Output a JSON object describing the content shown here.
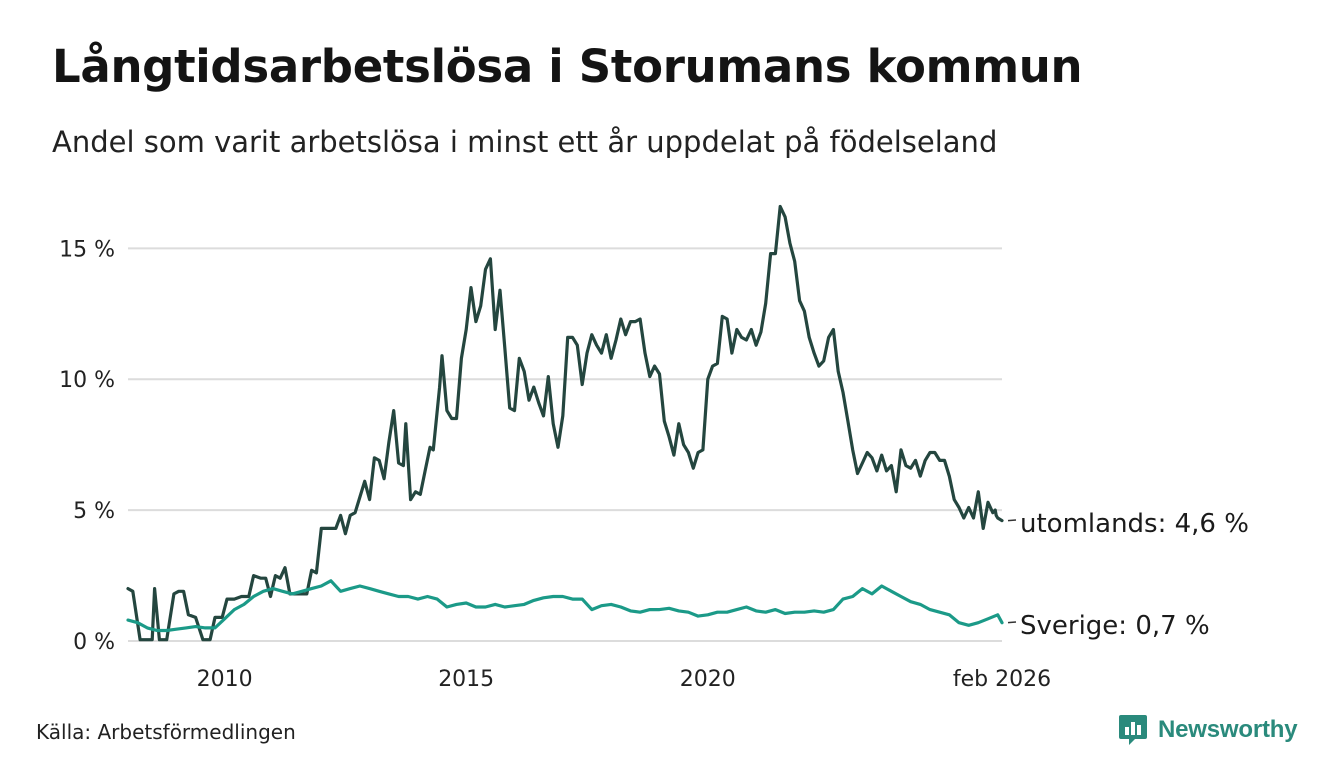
{
  "title": "Långtidsarbetslösa i Storumans kommun",
  "subtitle": "Andel som varit arbetslösa i minst ett år uppdelat på födelseland",
  "source": "Källa: Arbetsförmedlingen",
  "brand": "Newsworthy",
  "colors": {
    "utomlands": "#24463f",
    "sverige": "#1b9a88",
    "grid": "#dcdcdc",
    "brand": "#2a8a7c"
  },
  "chart_data": {
    "type": "line",
    "title": "Långtidsarbetslösa i Storumans kommun",
    "xlabel": "",
    "ylabel": "",
    "ylim": [
      0,
      17
    ],
    "xlim": [
      2008.0,
      2026.09
    ],
    "yticks": [
      {
        "value": 0,
        "label": "0 %"
      },
      {
        "value": 5,
        "label": "5 %"
      },
      {
        "value": 10,
        "label": "10 %"
      },
      {
        "value": 15,
        "label": "15 %"
      }
    ],
    "xticks": [
      {
        "value": 2010,
        "label": "2010"
      },
      {
        "value": 2015,
        "label": "2015"
      },
      {
        "value": 2020,
        "label": "2020"
      },
      {
        "value": 2026.09,
        "label": "feb 2026"
      }
    ],
    "series": [
      {
        "name": "utomlands",
        "end_label": "utomlands: 4,6 %",
        "points": [
          [
            2008.0,
            2.0
          ],
          [
            2008.1,
            1.9
          ],
          [
            2008.25,
            0.05
          ],
          [
            2008.5,
            0.05
          ],
          [
            2008.55,
            2.0
          ],
          [
            2008.65,
            0.05
          ],
          [
            2008.8,
            0.05
          ],
          [
            2008.95,
            1.8
          ],
          [
            2009.05,
            1.9
          ],
          [
            2009.15,
            1.9
          ],
          [
            2009.25,
            1.0
          ],
          [
            2009.4,
            0.9
          ],
          [
            2009.55,
            0.05
          ],
          [
            2009.7,
            0.05
          ],
          [
            2009.8,
            0.9
          ],
          [
            2009.95,
            0.9
          ],
          [
            2010.05,
            1.6
          ],
          [
            2010.2,
            1.6
          ],
          [
            2010.35,
            1.7
          ],
          [
            2010.5,
            1.7
          ],
          [
            2010.6,
            2.5
          ],
          [
            2010.75,
            2.4
          ],
          [
            2010.85,
            2.4
          ],
          [
            2010.95,
            1.7
          ],
          [
            2011.05,
            2.5
          ],
          [
            2011.15,
            2.4
          ],
          [
            2011.25,
            2.8
          ],
          [
            2011.35,
            1.8
          ],
          [
            2011.5,
            1.8
          ],
          [
            2011.6,
            1.8
          ],
          [
            2011.7,
            1.8
          ],
          [
            2011.8,
            2.7
          ],
          [
            2011.9,
            2.6
          ],
          [
            2012.0,
            4.3
          ],
          [
            2012.15,
            4.3
          ],
          [
            2012.3,
            4.3
          ],
          [
            2012.4,
            4.8
          ],
          [
            2012.5,
            4.1
          ],
          [
            2012.6,
            4.8
          ],
          [
            2012.7,
            4.9
          ],
          [
            2012.8,
            5.5
          ],
          [
            2012.9,
            6.1
          ],
          [
            2013.0,
            5.4
          ],
          [
            2013.1,
            7.0
          ],
          [
            2013.2,
            6.9
          ],
          [
            2013.3,
            6.2
          ],
          [
            2013.4,
            7.6
          ],
          [
            2013.5,
            8.8
          ],
          [
            2013.6,
            6.8
          ],
          [
            2013.7,
            6.7
          ],
          [
            2013.75,
            8.3
          ],
          [
            2013.85,
            5.4
          ],
          [
            2013.95,
            5.7
          ],
          [
            2014.05,
            5.6
          ],
          [
            2014.15,
            6.5
          ],
          [
            2014.25,
            7.4
          ],
          [
            2014.32,
            7.3
          ],
          [
            2014.45,
            9.7
          ],
          [
            2014.5,
            10.9
          ],
          [
            2014.6,
            8.8
          ],
          [
            2014.7,
            8.5
          ],
          [
            2014.8,
            8.5
          ],
          [
            2014.9,
            10.8
          ],
          [
            2015.0,
            11.9
          ],
          [
            2015.1,
            13.5
          ],
          [
            2015.2,
            12.2
          ],
          [
            2015.3,
            12.8
          ],
          [
            2015.4,
            14.2
          ],
          [
            2015.5,
            14.6
          ],
          [
            2015.6,
            11.9
          ],
          [
            2015.7,
            13.4
          ],
          [
            2015.8,
            11.2
          ],
          [
            2015.9,
            8.9
          ],
          [
            2016.0,
            8.8
          ],
          [
            2016.1,
            10.8
          ],
          [
            2016.2,
            10.3
          ],
          [
            2016.3,
            9.2
          ],
          [
            2016.4,
            9.7
          ],
          [
            2016.5,
            9.1
          ],
          [
            2016.6,
            8.6
          ],
          [
            2016.7,
            10.1
          ],
          [
            2016.8,
            8.3
          ],
          [
            2016.9,
            7.4
          ],
          [
            2017.0,
            8.6
          ],
          [
            2017.1,
            11.6
          ],
          [
            2017.2,
            11.6
          ],
          [
            2017.3,
            11.3
          ],
          [
            2017.4,
            9.8
          ],
          [
            2017.5,
            11.0
          ],
          [
            2017.6,
            11.7
          ],
          [
            2017.7,
            11.3
          ],
          [
            2017.8,
            11.0
          ],
          [
            2017.9,
            11.7
          ],
          [
            2018.0,
            10.8
          ],
          [
            2018.1,
            11.5
          ],
          [
            2018.2,
            12.3
          ],
          [
            2018.3,
            11.7
          ],
          [
            2018.4,
            12.2
          ],
          [
            2018.5,
            12.2
          ],
          [
            2018.6,
            12.3
          ],
          [
            2018.7,
            11.0
          ],
          [
            2018.8,
            10.1
          ],
          [
            2018.9,
            10.5
          ],
          [
            2019.0,
            10.2
          ],
          [
            2019.1,
            8.4
          ],
          [
            2019.2,
            7.8
          ],
          [
            2019.3,
            7.1
          ],
          [
            2019.4,
            8.3
          ],
          [
            2019.5,
            7.5
          ],
          [
            2019.6,
            7.2
          ],
          [
            2019.7,
            6.6
          ],
          [
            2019.8,
            7.2
          ],
          [
            2019.9,
            7.3
          ],
          [
            2020.0,
            10.0
          ],
          [
            2020.1,
            10.5
          ],
          [
            2020.2,
            10.6
          ],
          [
            2020.3,
            12.4
          ],
          [
            2020.4,
            12.3
          ],
          [
            2020.5,
            11.0
          ],
          [
            2020.6,
            11.9
          ],
          [
            2020.7,
            11.6
          ],
          [
            2020.8,
            11.5
          ],
          [
            2020.9,
            11.9
          ],
          [
            2021.0,
            11.3
          ],
          [
            2021.1,
            11.8
          ],
          [
            2021.2,
            12.9
          ],
          [
            2021.3,
            14.8
          ],
          [
            2021.4,
            14.8
          ],
          [
            2021.5,
            16.6
          ],
          [
            2021.6,
            16.2
          ],
          [
            2021.7,
            15.2
          ],
          [
            2021.8,
            14.5
          ],
          [
            2021.9,
            13.0
          ],
          [
            2022.0,
            12.6
          ],
          [
            2022.1,
            11.6
          ],
          [
            2022.2,
            11.0
          ],
          [
            2022.3,
            10.5
          ],
          [
            2022.4,
            10.7
          ],
          [
            2022.5,
            11.6
          ],
          [
            2022.6,
            11.9
          ],
          [
            2022.7,
            10.3
          ],
          [
            2022.8,
            9.5
          ],
          [
            2022.9,
            8.4
          ],
          [
            2023.0,
            7.3
          ],
          [
            2023.1,
            6.4
          ],
          [
            2023.2,
            6.8
          ],
          [
            2023.3,
            7.2
          ],
          [
            2023.4,
            7.0
          ],
          [
            2023.5,
            6.5
          ],
          [
            2023.6,
            7.1
          ],
          [
            2023.7,
            6.5
          ],
          [
            2023.8,
            6.7
          ],
          [
            2023.9,
            5.7
          ],
          [
            2024.0,
            7.3
          ],
          [
            2024.1,
            6.7
          ],
          [
            2024.2,
            6.6
          ],
          [
            2024.3,
            6.9
          ],
          [
            2024.4,
            6.3
          ],
          [
            2024.5,
            6.9
          ],
          [
            2024.6,
            7.2
          ],
          [
            2024.7,
            7.2
          ],
          [
            2024.8,
            6.9
          ],
          [
            2024.9,
            6.9
          ],
          [
            2025.0,
            6.3
          ],
          [
            2025.1,
            5.4
          ],
          [
            2025.2,
            5.1
          ],
          [
            2025.3,
            4.7
          ],
          [
            2025.4,
            5.1
          ],
          [
            2025.5,
            4.7
          ],
          [
            2025.6,
            5.7
          ],
          [
            2025.7,
            4.3
          ],
          [
            2025.8,
            5.3
          ],
          [
            2025.9,
            4.9
          ],
          [
            2025.95,
            5.0
          ],
          [
            2025.97,
            4.8
          ],
          [
            2026.0,
            4.7
          ],
          [
            2026.09,
            4.6
          ]
        ]
      },
      {
        "name": "Sverige",
        "end_label": "Sverige: 0,7 %",
        "points": []
      }
    ]
  }
}
